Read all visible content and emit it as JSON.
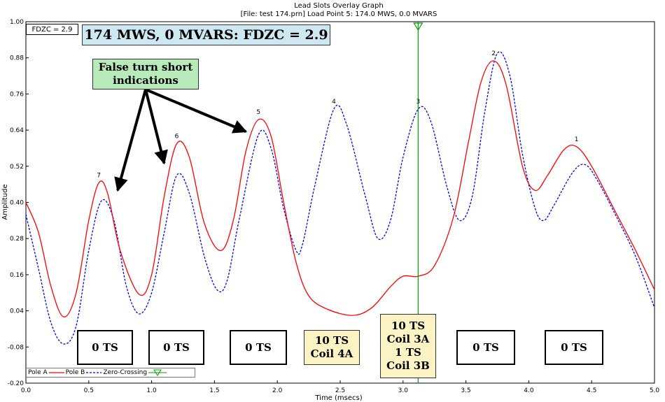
{
  "chart_data": {
    "type": "line",
    "title": "Lead Slots Overlay Graph",
    "subtitle": "[File: test 174.prn]  Load Point 5: 174.0 MWS,    0.0 MVARS",
    "xlabel": "Time (msecs)",
    "ylabel": "Amplitude",
    "xlim": [
      0.0,
      5.0
    ],
    "ylim": [
      -0.2,
      1.0
    ],
    "x_ticks": [
      "0.0",
      "0.5",
      "1.0",
      "1.5",
      "2.0",
      "2.5",
      "3.0",
      "3.5",
      "4.0",
      "4.5",
      "5.0"
    ],
    "y_ticks": [
      "1.00",
      "0.88",
      "0.76",
      "0.64",
      "0.52",
      "0.40",
      "0.28",
      "0.16",
      "0.04",
      "-0.08",
      "-0.20"
    ],
    "grid": false,
    "legend_placement": "bottom-left",
    "series": [
      {
        "name": "Pole A",
        "color": "#ff0000",
        "style": "solid",
        "points": [
          [
            0.0,
            0.4
          ],
          [
            0.1,
            0.3
          ],
          [
            0.2,
            0.12
          ],
          [
            0.3,
            0.02
          ],
          [
            0.4,
            0.1
          ],
          [
            0.5,
            0.34
          ],
          [
            0.58,
            0.465
          ],
          [
            0.65,
            0.43
          ],
          [
            0.75,
            0.24
          ],
          [
            0.9,
            0.095
          ],
          [
            1.0,
            0.16
          ],
          [
            1.1,
            0.42
          ],
          [
            1.2,
            0.595
          ],
          [
            1.3,
            0.55
          ],
          [
            1.42,
            0.33
          ],
          [
            1.55,
            0.24
          ],
          [
            1.65,
            0.34
          ],
          [
            1.75,
            0.57
          ],
          [
            1.85,
            0.675
          ],
          [
            1.95,
            0.62
          ],
          [
            2.05,
            0.4
          ],
          [
            2.15,
            0.2
          ],
          [
            2.25,
            0.09
          ],
          [
            2.4,
            0.045
          ],
          [
            2.6,
            0.025
          ],
          [
            2.75,
            0.05
          ],
          [
            2.9,
            0.12
          ],
          [
            3.0,
            0.155
          ],
          [
            3.12,
            0.155
          ],
          [
            3.25,
            0.19
          ],
          [
            3.4,
            0.35
          ],
          [
            3.52,
            0.6
          ],
          [
            3.62,
            0.8
          ],
          [
            3.72,
            0.87
          ],
          [
            3.82,
            0.79
          ],
          [
            3.95,
            0.52
          ],
          [
            4.05,
            0.44
          ],
          [
            4.15,
            0.49
          ],
          [
            4.28,
            0.575
          ],
          [
            4.38,
            0.585
          ],
          [
            4.5,
            0.52
          ],
          [
            4.7,
            0.36
          ],
          [
            4.85,
            0.24
          ],
          [
            5.0,
            0.11
          ]
        ]
      },
      {
        "name": "Pole B",
        "color": "#0000ff",
        "style": "dashed",
        "points": [
          [
            0.0,
            0.36
          ],
          [
            0.1,
            0.18
          ],
          [
            0.2,
            0.0
          ],
          [
            0.3,
            -0.07
          ],
          [
            0.4,
            -0.01
          ],
          [
            0.5,
            0.24
          ],
          [
            0.6,
            0.405
          ],
          [
            0.7,
            0.34
          ],
          [
            0.8,
            0.12
          ],
          [
            0.9,
            0.03
          ],
          [
            1.0,
            0.1
          ],
          [
            1.1,
            0.3
          ],
          [
            1.2,
            0.49
          ],
          [
            1.3,
            0.43
          ],
          [
            1.42,
            0.22
          ],
          [
            1.52,
            0.11
          ],
          [
            1.6,
            0.14
          ],
          [
            1.7,
            0.35
          ],
          [
            1.85,
            0.625
          ],
          [
            1.95,
            0.58
          ],
          [
            2.05,
            0.38
          ],
          [
            2.15,
            0.24
          ],
          [
            2.2,
            0.26
          ],
          [
            2.3,
            0.46
          ],
          [
            2.45,
            0.71
          ],
          [
            2.55,
            0.66
          ],
          [
            2.7,
            0.42
          ],
          [
            2.8,
            0.28
          ],
          [
            2.9,
            0.34
          ],
          [
            3.0,
            0.55
          ],
          [
            3.12,
            0.71
          ],
          [
            3.22,
            0.67
          ],
          [
            3.35,
            0.45
          ],
          [
            3.45,
            0.34
          ],
          [
            3.55,
            0.42
          ],
          [
            3.65,
            0.7
          ],
          [
            3.75,
            0.895
          ],
          [
            3.85,
            0.82
          ],
          [
            3.95,
            0.56
          ],
          [
            4.05,
            0.38
          ],
          [
            4.12,
            0.34
          ],
          [
            4.2,
            0.39
          ],
          [
            4.35,
            0.5
          ],
          [
            4.45,
            0.525
          ],
          [
            4.55,
            0.47
          ],
          [
            4.7,
            0.35
          ],
          [
            4.85,
            0.22
          ],
          [
            5.0,
            0.05
          ]
        ]
      }
    ],
    "peak_labels": [
      {
        "text": "7",
        "x": 0.58,
        "y": 0.465
      },
      {
        "text": "6",
        "x": 1.2,
        "y": 0.595
      },
      {
        "text": "5",
        "x": 1.85,
        "y": 0.675
      },
      {
        "text": "4",
        "x": 2.45,
        "y": 0.71
      },
      {
        "text": "3",
        "x": 3.12,
        "y": 0.71
      },
      {
        "text": "2",
        "x": 3.72,
        "y": 0.87
      },
      {
        "text": "1",
        "x": 4.38,
        "y": 0.585
      }
    ],
    "zero_crossing": {
      "name": "Zero-Crossing",
      "x": 3.12,
      "color": "#00a000"
    },
    "annotations": {
      "fdzc": "FDZC = 2.9",
      "headline": "174 MWS, 0 MVARS: FDZC = 2.9",
      "callout_lines": [
        "False turn short",
        "indications"
      ],
      "arrow_targets": [
        {
          "x": 0.73,
          "y": 0.44
        },
        {
          "x": 1.1,
          "y": 0.53
        },
        {
          "x": 1.75,
          "y": 0.635
        }
      ],
      "ts_boxes": [
        {
          "lines": [
            "0 TS"
          ],
          "highlight": false
        },
        {
          "lines": [
            "0 TS"
          ],
          "highlight": false
        },
        {
          "lines": [
            "0 TS"
          ],
          "highlight": false
        },
        {
          "lines": [
            "10 TS",
            "Coil 4A"
          ],
          "highlight": true
        },
        {
          "lines": [
            "10 TS",
            "Coil 3A",
            "1 TS",
            "Coil 3B"
          ],
          "highlight": true
        },
        {
          "lines": [
            "0 TS"
          ],
          "highlight": false
        },
        {
          "lines": [
            "0 TS"
          ],
          "highlight": false
        }
      ]
    }
  }
}
